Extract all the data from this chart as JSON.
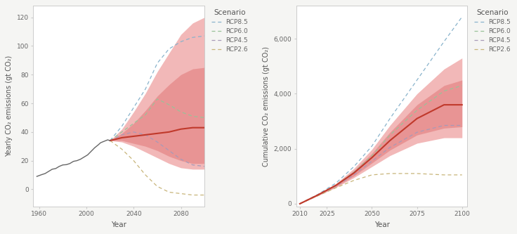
{
  "left": {
    "xlim": [
      1955,
      2100
    ],
    "ylim": [
      -12,
      128
    ],
    "xticks": [
      1960,
      2000,
      2040,
      2080
    ],
    "yticks": [
      0,
      20,
      40,
      60,
      80,
      100,
      120
    ],
    "xlabel": "Year",
    "ylabel": "Yearly CO₂ emissions (gt CO₂)",
    "historical_x": [
      1958,
      1962,
      1965,
      1968,
      1971,
      1974,
      1977,
      1980,
      1983,
      1986,
      1989,
      1992,
      1995,
      1998,
      2001,
      2004,
      2007,
      2010,
      2012,
      2015,
      2018,
      2020
    ],
    "historical_y": [
      9.0,
      10.2,
      11.0,
      12.5,
      14.0,
      14.5,
      16.0,
      17.0,
      17.2,
      18.0,
      19.5,
      20.0,
      21.0,
      22.5,
      24.0,
      26.5,
      29.0,
      31.0,
      32.5,
      33.5,
      34.5,
      34.0
    ],
    "rcp85_x": [
      2020,
      2030,
      2040,
      2050,
      2060,
      2070,
      2080,
      2090,
      2100
    ],
    "rcp85_y": [
      34,
      44,
      57,
      70,
      88,
      98,
      103,
      106,
      107
    ],
    "rcp60_x": [
      2020,
      2030,
      2040,
      2050,
      2060,
      2070,
      2080,
      2090,
      2100
    ],
    "rcp60_y": [
      34,
      40,
      46,
      52,
      63,
      59,
      54,
      51,
      50
    ],
    "rcp45_x": [
      2020,
      2030,
      2040,
      2050,
      2060,
      2070,
      2080,
      2090,
      2100
    ],
    "rcp45_y": [
      34,
      38,
      40,
      38,
      33,
      27,
      21,
      17,
      16
    ],
    "rcp26_x": [
      2020,
      2030,
      2040,
      2050,
      2060,
      2070,
      2080,
      2090,
      2100
    ],
    "rcp26_y": [
      34,
      28,
      20,
      10,
      2,
      -2,
      -3,
      -4,
      -4
    ],
    "median_x": [
      2020,
      2030,
      2040,
      2050,
      2060,
      2070,
      2080,
      2090,
      2100
    ],
    "median_y": [
      34,
      36,
      37,
      38,
      39,
      40,
      42,
      43,
      43
    ],
    "band_outer_x": [
      2020,
      2030,
      2040,
      2050,
      2060,
      2070,
      2080,
      2090,
      2100
    ],
    "band_outer_upper": [
      34,
      42,
      54,
      67,
      82,
      95,
      108,
      116,
      120
    ],
    "band_outer_lower": [
      34,
      33,
      30,
      26,
      22,
      18,
      15,
      14,
      14
    ],
    "band_inner_x": [
      2020,
      2030,
      2040,
      2050,
      2060,
      2070,
      2080,
      2090,
      2100
    ],
    "band_inner_upper": [
      34,
      39,
      46,
      55,
      65,
      73,
      80,
      84,
      85
    ],
    "band_inner_lower": [
      34,
      34,
      32,
      30,
      27,
      23,
      20,
      18,
      18
    ]
  },
  "right": {
    "xlim": [
      2008,
      2103
    ],
    "ylim": [
      -100,
      7200
    ],
    "xticks": [
      2010,
      2025,
      2050,
      2075,
      2100
    ],
    "yticks": [
      0,
      2000,
      4000,
      6000
    ],
    "xlabel": "Year",
    "ylabel": "Cumulative CO₂ emissions (gt CO₂)",
    "rcp85_x": [
      2010,
      2020,
      2030,
      2040,
      2050,
      2060,
      2075,
      2090,
      2100
    ],
    "rcp85_y": [
      0,
      340,
      750,
      1350,
      2100,
      3100,
      4500,
      5900,
      6800
    ],
    "rcp60_x": [
      2010,
      2020,
      2030,
      2040,
      2050,
      2060,
      2075,
      2090,
      2100
    ],
    "rcp60_y": [
      0,
      320,
      680,
      1150,
      1750,
      2500,
      3400,
      4100,
      4300
    ],
    "rcp45_x": [
      2010,
      2020,
      2030,
      2040,
      2050,
      2060,
      2075,
      2090,
      2100
    ],
    "rcp45_y": [
      0,
      310,
      640,
      1050,
      1550,
      2050,
      2600,
      2850,
      2850
    ],
    "rcp26_x": [
      2010,
      2020,
      2030,
      2040,
      2050,
      2060,
      2075,
      2090,
      2100
    ],
    "rcp26_y": [
      0,
      290,
      580,
      850,
      1050,
      1100,
      1100,
      1050,
      1050
    ],
    "median_x": [
      2010,
      2020,
      2030,
      2040,
      2050,
      2060,
      2075,
      2090,
      2100
    ],
    "median_y": [
      0,
      320,
      670,
      1120,
      1680,
      2300,
      3100,
      3600,
      3600
    ],
    "band_outer_x": [
      2010,
      2020,
      2030,
      2040,
      2050,
      2060,
      2075,
      2090,
      2100
    ],
    "band_outer_upper": [
      0,
      340,
      730,
      1280,
      1980,
      2850,
      4000,
      4900,
      5300
    ],
    "band_outer_lower": [
      0,
      290,
      590,
      950,
      1350,
      1750,
      2200,
      2400,
      2400
    ],
    "band_inner_x": [
      2010,
      2020,
      2030,
      2040,
      2050,
      2060,
      2075,
      2090,
      2100
    ],
    "band_inner_upper": [
      0,
      330,
      700,
      1200,
      1830,
      2600,
      3600,
      4300,
      4500
    ],
    "band_inner_lower": [
      0,
      300,
      620,
      1010,
      1480,
      1950,
      2500,
      2750,
      2800
    ]
  },
  "color_rcp85": "#89b3cc",
  "color_rcp60": "#99c299",
  "color_rcp45": "#a89ab8",
  "color_rcp26": "#c8b57a",
  "color_median": "#c0392b",
  "color_historical": "#666666",
  "color_band_outer": "#f2b8b8",
  "color_band_inner": "#e07878",
  "legend_title": "Scenario",
  "legend_labels": [
    "RCP8.5",
    "RCP6.0",
    "RCP4.5",
    "RCP2.6"
  ],
  "bg_color": "#f5f5f3",
  "panel_bg": "#ffffff",
  "spine_color": "#cccccc",
  "tick_color": "#666666",
  "label_color": "#555555"
}
